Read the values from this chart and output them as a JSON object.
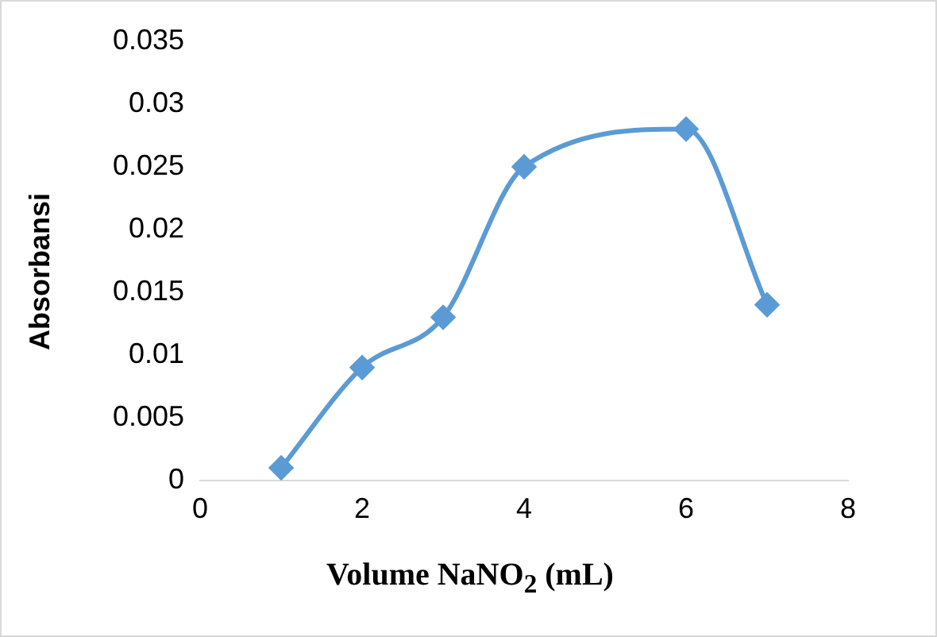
{
  "chart_data": {
    "type": "line",
    "xlabel": "Volume NaNO$_{2}$ (mL)",
    "ylabel": "Absorbansi",
    "x": [
      1,
      2,
      3,
      4,
      6,
      7
    ],
    "series": [
      {
        "color": "#5b9bd5",
        "values": [
          0.001,
          0.009,
          0.013,
          0.025,
          0.028,
          0.014
        ]
      }
    ],
    "xlim": [
      0,
      8
    ],
    "xticks": [
      0,
      2,
      4,
      6,
      8
    ],
    "ylim": [
      0,
      0.035
    ],
    "yticks": [
      0,
      0.005,
      0.01,
      0.015,
      0.02,
      0.025,
      0.03,
      0.035
    ],
    "grid": false,
    "legend": false,
    "marker": "diamond",
    "line_style": "solid"
  }
}
